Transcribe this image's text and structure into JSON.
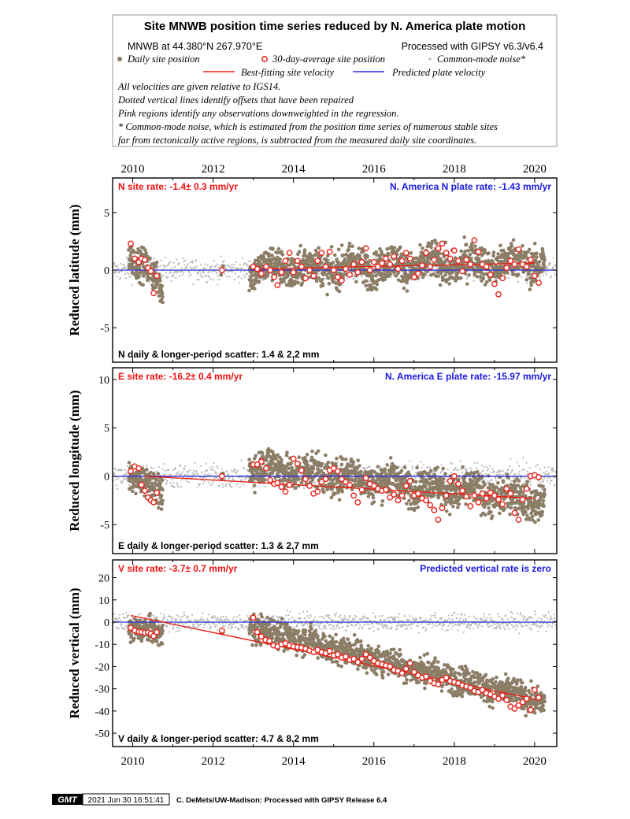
{
  "header": {
    "title": "Site MNWB position time series reduced by N. America plate motion",
    "site_line": "MNWB at 44.380°N 267.970°E",
    "processed_line": "Processed with GIPSY v6.3/v6.4",
    "legend": {
      "daily": "Daily site position",
      "avg30": "30-day-average site position",
      "noise": "Common-mode noise*",
      "best_fit": "Best-fitting site velocity",
      "predicted": "Predicted plate velocity"
    },
    "notes": [
      "All velocities are given relative to IGS14.",
      "Dotted vertical lines identify offsets that have been repaired",
      "Pink regions identify any observations downweighted in the regression.",
      "* Common-mode noise, which is estimated from the position time series of numerous stable sites",
      "far from tectonically active regions, is subtracted from the measured daily site coordinates."
    ]
  },
  "colors": {
    "daily": "#8b7d66",
    "noise": "#b8b8b8",
    "avg30_edge": "#e8231a",
    "best_fit": "#e8231a",
    "predicted": "#2b2bd8",
    "rate_text_red": "#ee1111",
    "rate_text_blue": "#1a1ae0"
  },
  "x_axis": {
    "ticks": [
      "2010",
      "2012",
      "2014",
      "2016",
      "2018",
      "2020"
    ],
    "xlim": [
      2009.5,
      2020.55
    ]
  },
  "chart_data": [
    {
      "type": "scatter",
      "panel": "north",
      "ylabel": "Reduced latitude (mm)",
      "ylim": [
        -8.0,
        8.0
      ],
      "yticks": [
        "5",
        "0",
        "-5"
      ],
      "ytick_values": [
        5,
        0,
        -5
      ],
      "site_rate": "N site rate:  -1.4± 0.3 mm/yr",
      "plate_rate": "N. America N plate rate: -1.43 mm/yr",
      "scatter_text": "N daily & longer-period scatter:   1.4 &   2.2 mm",
      "best_fit": [
        [
          2013.0,
          0.1
        ],
        [
          2020.0,
          0.6
        ]
      ],
      "predicted_value": 0,
      "segments": [
        {
          "start": 2009.9,
          "end": 2010.75,
          "trend": [
            1.8,
            -1.8
          ],
          "spread": 1.0
        },
        {
          "start": 2012.2,
          "end": 2012.25,
          "trend": [
            0.0,
            0.0
          ],
          "spread": 0.3
        },
        {
          "start": 2012.9,
          "end": 2020.25,
          "trend": [
            0.1,
            0.7
          ],
          "spread": 1.1
        }
      ],
      "noise_range": [
        2009.5,
        2020.55
      ],
      "noise_spread": 0.7,
      "averages": [
        [
          2009.95,
          2.3
        ],
        [
          2010.05,
          1.0
        ],
        [
          2010.15,
          0.7
        ],
        [
          2010.22,
          1.0
        ],
        [
          2010.3,
          0.9
        ],
        [
          2010.38,
          0.2
        ],
        [
          2010.45,
          -0.1
        ],
        [
          2010.52,
          -2.0
        ],
        [
          2010.6,
          -0.5
        ],
        [
          2012.22,
          0.0
        ],
        [
          2013.0,
          0.3
        ],
        [
          2013.1,
          0.1
        ],
        [
          2013.2,
          -0.3
        ],
        [
          2013.32,
          0.3
        ],
        [
          2013.42,
          0.0
        ],
        [
          2013.52,
          -0.6
        ],
        [
          2013.6,
          -1.3
        ],
        [
          2013.7,
          -0.2
        ],
        [
          2013.8,
          0.8
        ],
        [
          2013.9,
          1.5
        ],
        [
          2014.0,
          -0.2
        ],
        [
          2014.1,
          0.8
        ],
        [
          2014.2,
          0.3
        ],
        [
          2014.3,
          -0.7
        ],
        [
          2014.4,
          0.0
        ],
        [
          2014.5,
          -0.5
        ],
        [
          2014.6,
          0.8
        ],
        [
          2014.7,
          1.5
        ],
        [
          2014.8,
          0.3
        ],
        [
          2014.9,
          1.6
        ],
        [
          2015.0,
          0.0
        ],
        [
          2015.1,
          -0.6
        ],
        [
          2015.2,
          -0.9
        ],
        [
          2015.3,
          0.1
        ],
        [
          2015.4,
          -0.4
        ],
        [
          2015.5,
          0.5
        ],
        [
          2015.6,
          -0.2
        ],
        [
          2015.7,
          0.7
        ],
        [
          2015.8,
          1.9
        ],
        [
          2015.9,
          0.0
        ],
        [
          2016.0,
          0.7
        ],
        [
          2016.1,
          0.3
        ],
        [
          2016.2,
          0.6
        ],
        [
          2016.3,
          1.0
        ],
        [
          2016.4,
          0.5
        ],
        [
          2016.5,
          1.2
        ],
        [
          2016.6,
          0.1
        ],
        [
          2016.7,
          0.8
        ],
        [
          2016.8,
          1.5
        ],
        [
          2016.9,
          1.0
        ],
        [
          2017.0,
          -0.6
        ],
        [
          2017.1,
          -0.3
        ],
        [
          2017.2,
          0.4
        ],
        [
          2017.3,
          1.5
        ],
        [
          2017.4,
          0.3
        ],
        [
          2017.5,
          0.9
        ],
        [
          2017.6,
          1.9
        ],
        [
          2017.7,
          2.3
        ],
        [
          2017.8,
          1.5
        ],
        [
          2017.9,
          1.0
        ],
        [
          2018.0,
          1.7
        ],
        [
          2018.1,
          0.8
        ],
        [
          2018.2,
          -0.1
        ],
        [
          2018.3,
          0.9
        ],
        [
          2018.4,
          0.5
        ],
        [
          2018.5,
          2.6
        ],
        [
          2018.6,
          1.6
        ],
        [
          2018.7,
          0.5
        ],
        [
          2018.8,
          0.3
        ],
        [
          2018.9,
          -0.4
        ],
        [
          2019.0,
          -1.2
        ],
        [
          2019.1,
          -2.1
        ],
        [
          2019.2,
          -0.7
        ],
        [
          2019.3,
          0.2
        ],
        [
          2019.4,
          0.8
        ],
        [
          2019.5,
          0.5
        ],
        [
          2019.6,
          1.8
        ],
        [
          2019.7,
          0.5
        ],
        [
          2019.8,
          0.3
        ],
        [
          2019.9,
          0.9
        ],
        [
          2020.0,
          -0.5
        ],
        [
          2020.1,
          -1.1
        ]
      ]
    },
    {
      "type": "scatter",
      "panel": "east",
      "ylabel": "Reduced longitude (mm)",
      "ylim": [
        -8.0,
        11.2
      ],
      "yticks": [
        "10",
        "5",
        "0",
        "-5"
      ],
      "ytick_values": [
        10,
        5,
        0,
        -5
      ],
      "site_rate": "E site rate: -16.2± 0.4 mm/yr",
      "plate_rate": "N. America E plate rate: -15.97 mm/yr",
      "scatter_text": "E daily & longer-period scatter:   1.3 &   2.7 mm",
      "best_fit": [
        [
          2010.3,
          0.0
        ],
        [
          2020.0,
          -2.3
        ]
      ],
      "predicted_value": 0,
      "segments": [
        {
          "start": 2009.9,
          "end": 2010.75,
          "trend": [
            0.5,
            -2.2
          ],
          "spread": 1.0
        },
        {
          "start": 2012.2,
          "end": 2012.25,
          "trend": [
            0.0,
            0.0
          ],
          "spread": 0.3
        },
        {
          "start": 2012.9,
          "end": 2020.25,
          "trend": [
            1.2,
            -2.6
          ],
          "spread": 1.3
        }
      ],
      "noise_range": [
        2009.5,
        2020.55
      ],
      "noise_spread": 0.9,
      "averages": [
        [
          2009.95,
          0.5
        ],
        [
          2010.05,
          1.0
        ],
        [
          2010.15,
          0.8
        ],
        [
          2010.22,
          -0.9
        ],
        [
          2010.3,
          -1.5
        ],
        [
          2010.38,
          -2.2
        ],
        [
          2010.45,
          -2.5
        ],
        [
          2010.52,
          -2.7
        ],
        [
          2010.6,
          -1.7
        ],
        [
          2012.22,
          0.0
        ],
        [
          2013.0,
          1.2
        ],
        [
          2013.1,
          1.2
        ],
        [
          2013.2,
          1.5
        ],
        [
          2013.32,
          0.8
        ],
        [
          2013.42,
          -0.4
        ],
        [
          2013.52,
          -0.8
        ],
        [
          2013.6,
          -0.7
        ],
        [
          2013.7,
          -1.1
        ],
        [
          2013.8,
          -1.6
        ],
        [
          2013.9,
          -0.9
        ],
        [
          2014.0,
          1.8
        ],
        [
          2014.1,
          1.3
        ],
        [
          2014.2,
          0.6
        ],
        [
          2014.3,
          -0.3
        ],
        [
          2014.4,
          -1.0
        ],
        [
          2014.5,
          -1.8
        ],
        [
          2014.6,
          -1.6
        ],
        [
          2014.7,
          -0.6
        ],
        [
          2014.8,
          -0.3
        ],
        [
          2014.9,
          0.6
        ],
        [
          2015.0,
          0.8
        ],
        [
          2015.1,
          0.5
        ],
        [
          2015.2,
          -0.3
        ],
        [
          2015.3,
          -0.6
        ],
        [
          2015.4,
          -0.9
        ],
        [
          2015.5,
          -2.0
        ],
        [
          2015.6,
          -2.7
        ],
        [
          2015.7,
          -1.4
        ],
        [
          2015.8,
          -0.2
        ],
        [
          2015.9,
          -0.8
        ],
        [
          2016.0,
          -1.0
        ],
        [
          2016.1,
          -1.3
        ],
        [
          2016.2,
          -1.5
        ],
        [
          2016.3,
          -1.4
        ],
        [
          2016.4,
          -2.2
        ],
        [
          2016.5,
          -1.9
        ],
        [
          2016.6,
          -2.5
        ],
        [
          2016.7,
          -2.0
        ],
        [
          2016.8,
          -1.0
        ],
        [
          2016.9,
          -0.5
        ],
        [
          2017.0,
          -2.0
        ],
        [
          2017.1,
          -1.8
        ],
        [
          2017.2,
          -2.3
        ],
        [
          2017.3,
          -2.5
        ],
        [
          2017.4,
          -3.0
        ],
        [
          2017.5,
          -3.5
        ],
        [
          2017.6,
          -4.5
        ],
        [
          2017.7,
          -3.3
        ],
        [
          2017.8,
          -2.0
        ],
        [
          2017.9,
          -0.5
        ],
        [
          2018.0,
          0.0
        ],
        [
          2018.1,
          -0.8
        ],
        [
          2018.2,
          -1.5
        ],
        [
          2018.3,
          -2.1
        ],
        [
          2018.4,
          -3.1
        ],
        [
          2018.5,
          -2.0
        ],
        [
          2018.6,
          -2.7
        ],
        [
          2018.7,
          -1.8
        ],
        [
          2018.8,
          -2.3
        ],
        [
          2018.9,
          -1.7
        ],
        [
          2019.0,
          -2.0
        ],
        [
          2019.1,
          -2.4
        ],
        [
          2019.2,
          -2.9
        ],
        [
          2019.3,
          -1.3
        ],
        [
          2019.4,
          -1.8
        ],
        [
          2019.5,
          -3.8
        ],
        [
          2019.6,
          -4.5
        ],
        [
          2019.7,
          -2.4
        ],
        [
          2019.8,
          -1.3
        ],
        [
          2019.9,
          0.0
        ],
        [
          2020.0,
          0.1
        ],
        [
          2020.1,
          -0.1
        ]
      ]
    },
    {
      "type": "scatter",
      "panel": "vertical",
      "ylabel": "Reduced vertical (mm)",
      "ylim": [
        -56.0,
        28.0
      ],
      "yticks": [
        "20",
        "10",
        "0",
        "-10",
        "-20",
        "-30",
        "-40",
        "-50"
      ],
      "ytick_values": [
        20,
        10,
        0,
        -10,
        -20,
        -30,
        -40,
        -50
      ],
      "site_rate": "V site rate:  -3.7± 0.7 mm/yr",
      "plate_rate": "Predicted vertical rate is zero",
      "scatter_text": "V daily & longer-period scatter:   4.7 &   8.2 mm",
      "best_fit": [
        [
          2009.95,
          3.0
        ],
        [
          2020.1,
          -35.0
        ]
      ],
      "predicted_value": 0,
      "segments": [
        {
          "start": 2009.9,
          "end": 2010.75,
          "trend": [
            -2.0,
            -6.0
          ],
          "spread": 4.0
        },
        {
          "start": 2012.2,
          "end": 2012.25,
          "trend": [
            -4.0,
            -4.0
          ],
          "spread": 1.0
        },
        {
          "start": 2012.9,
          "end": 2020.25,
          "trend": [
            -2.0,
            -36.0
          ],
          "spread": 4.5
        }
      ],
      "noise_range": [
        2009.5,
        2020.55
      ],
      "noise_spread": 2.8,
      "averages": [
        [
          2009.95,
          -2.5
        ],
        [
          2010.05,
          -3.8
        ],
        [
          2010.15,
          -4.3
        ],
        [
          2010.22,
          -4.5
        ],
        [
          2010.3,
          -4.8
        ],
        [
          2010.38,
          -4.6
        ],
        [
          2010.45,
          -5.2
        ],
        [
          2010.52,
          -6.3
        ],
        [
          2010.6,
          -4.5
        ],
        [
          2012.22,
          -3.8
        ],
        [
          2013.0,
          2.0
        ],
        [
          2013.1,
          -4.5
        ],
        [
          2013.2,
          -6.5
        ],
        [
          2013.3,
          -8.0
        ],
        [
          2013.4,
          -8.5
        ],
        [
          2013.5,
          -10.5
        ],
        [
          2013.6,
          -11.0
        ],
        [
          2013.7,
          -10.0
        ],
        [
          2013.8,
          -9.5
        ],
        [
          2013.9,
          -10.5
        ],
        [
          2014.0,
          -11.0
        ],
        [
          2014.1,
          -11.2
        ],
        [
          2014.2,
          -11.5
        ],
        [
          2014.3,
          -12.0
        ],
        [
          2014.4,
          -12.8
        ],
        [
          2014.5,
          -13.5
        ],
        [
          2014.6,
          -12.5
        ],
        [
          2014.7,
          -13.5
        ],
        [
          2014.8,
          -14.0
        ],
        [
          2014.9,
          -13.0
        ],
        [
          2015.0,
          -15.0
        ],
        [
          2015.1,
          -14.5
        ],
        [
          2015.2,
          -16.0
        ],
        [
          2015.3,
          -15.5
        ],
        [
          2015.4,
          -17.0
        ],
        [
          2015.5,
          -16.5
        ],
        [
          2015.6,
          -18.0
        ],
        [
          2015.7,
          -16.5
        ],
        [
          2015.8,
          -14.5
        ],
        [
          2015.9,
          -16.0
        ],
        [
          2016.0,
          -17.5
        ],
        [
          2016.1,
          -18.5
        ],
        [
          2016.2,
          -19.0
        ],
        [
          2016.3,
          -19.5
        ],
        [
          2016.4,
          -20.0
        ],
        [
          2016.5,
          -21.5
        ],
        [
          2016.6,
          -22.0
        ],
        [
          2016.7,
          -23.0
        ],
        [
          2016.8,
          -21.0
        ],
        [
          2016.9,
          -18.5
        ],
        [
          2017.0,
          -22.5
        ],
        [
          2017.1,
          -24.0
        ],
        [
          2017.2,
          -25.0
        ],
        [
          2017.3,
          -24.5
        ],
        [
          2017.4,
          -26.5
        ],
        [
          2017.5,
          -27.5
        ],
        [
          2017.6,
          -28.0
        ],
        [
          2017.7,
          -26.0
        ],
        [
          2017.8,
          -25.0
        ],
        [
          2017.9,
          -26.5
        ],
        [
          2018.0,
          -27.0
        ],
        [
          2018.1,
          -27.5
        ],
        [
          2018.2,
          -28.5
        ],
        [
          2018.3,
          -29.0
        ],
        [
          2018.4,
          -29.5
        ],
        [
          2018.5,
          -31.0
        ],
        [
          2018.6,
          -31.5
        ],
        [
          2018.7,
          -30.5
        ],
        [
          2018.8,
          -32.0
        ],
        [
          2018.9,
          -32.5
        ],
        [
          2019.0,
          -33.5
        ],
        [
          2019.1,
          -34.5
        ],
        [
          2019.2,
          -33.0
        ],
        [
          2019.3,
          -35.0
        ],
        [
          2019.4,
          -38.0
        ],
        [
          2019.5,
          -39.0
        ],
        [
          2019.6,
          -37.5
        ],
        [
          2019.7,
          -36.0
        ],
        [
          2019.8,
          -34.5
        ],
        [
          2019.9,
          -39.5
        ],
        [
          2020.0,
          -30.5
        ],
        [
          2020.1,
          -34.0
        ]
      ]
    }
  ],
  "footer": {
    "logo": "GMT",
    "timestamp": "2021 Jun 30 16:51:41",
    "credit": "C. DeMets/UW-Madison: Processed with GIPSY Release 6.4"
  }
}
